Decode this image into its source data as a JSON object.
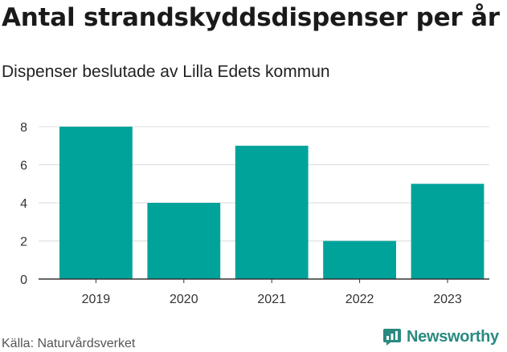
{
  "header": {
    "title": "Antal strandskyddsdispenser per år",
    "subtitle": "Dispenser beslutade av Lilla Edets kommun"
  },
  "footer": {
    "source": "Källa: Naturvårdsverket",
    "brand": "Newsworthy"
  },
  "colors": {
    "bar": "#00a39a",
    "brand": "#2a8a80"
  },
  "chart_data": {
    "type": "bar",
    "title": "Antal strandskyddsdispenser per år",
    "subtitle": "Dispenser beslutade av Lilla Edets kommun",
    "categories": [
      "2019",
      "2020",
      "2021",
      "2022",
      "2023"
    ],
    "values": [
      8,
      4,
      7,
      2,
      5
    ],
    "xlabel": "",
    "ylabel": "",
    "ylim": [
      0,
      8
    ],
    "yticks": [
      0,
      2,
      4,
      6,
      8
    ],
    "grid": true
  }
}
